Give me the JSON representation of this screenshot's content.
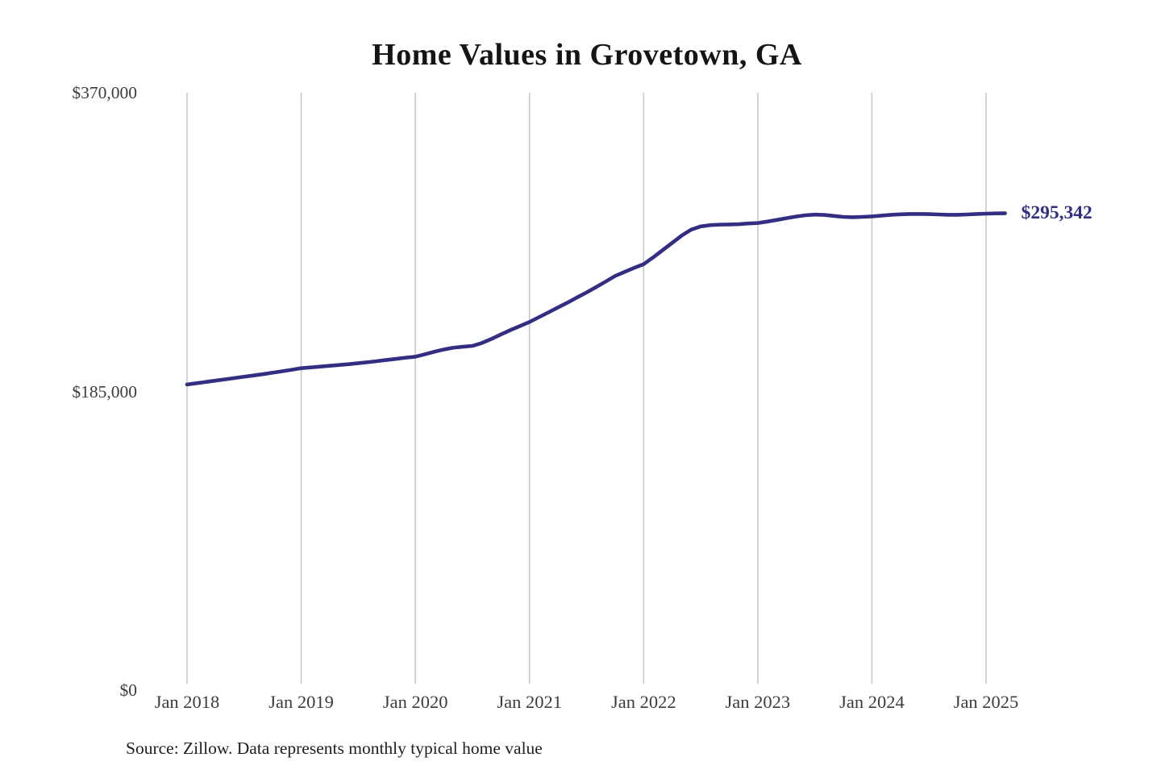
{
  "chart_data": {
    "type": "line",
    "title": "Home Values in Grovetown, GA",
    "source_note": "Source: Zillow. Data represents monthly typical home value",
    "end_label": "$295,342",
    "latest_value": 295342,
    "ylim": [
      0,
      370000
    ],
    "grid": "vertical-only",
    "colors": {
      "line": "#332e82",
      "end_label": "#332e82",
      "gridline": "#c9c9c9",
      "axis_text": "#3c3c3c",
      "title_text": "#151515"
    },
    "y_ticks": [
      {
        "value": 370000,
        "label": "$370,000"
      },
      {
        "value": 185000,
        "label": "$185,000"
      },
      {
        "value": 0,
        "label": "$0"
      }
    ],
    "x_tick_labels": [
      "Jan 2018",
      "Jan 2019",
      "Jan 2020",
      "Jan 2021",
      "Jan 2022",
      "Jan 2023",
      "Jan 2024",
      "Jan 2025"
    ],
    "series": [
      {
        "name": "Typical home value",
        "color": "#332e82",
        "x": [
          "2018-01",
          "2018-02",
          "2018-03",
          "2018-04",
          "2018-05",
          "2018-06",
          "2018-07",
          "2018-08",
          "2018-09",
          "2018-10",
          "2018-11",
          "2018-12",
          "2019-01",
          "2019-02",
          "2019-03",
          "2019-04",
          "2019-05",
          "2019-06",
          "2019-07",
          "2019-08",
          "2019-09",
          "2019-10",
          "2019-11",
          "2019-12",
          "2020-01",
          "2020-02",
          "2020-03",
          "2020-04",
          "2020-05",
          "2020-06",
          "2020-07",
          "2020-08",
          "2020-09",
          "2020-10",
          "2020-11",
          "2020-12",
          "2021-01",
          "2021-02",
          "2021-03",
          "2021-04",
          "2021-05",
          "2021-06",
          "2021-07",
          "2021-08",
          "2021-09",
          "2021-10",
          "2021-11",
          "2021-12",
          "2022-01",
          "2022-02",
          "2022-03",
          "2022-04",
          "2022-05",
          "2022-06",
          "2022-07",
          "2022-08",
          "2022-09",
          "2022-10",
          "2022-11",
          "2022-12",
          "2023-01",
          "2023-02",
          "2023-03",
          "2023-04",
          "2023-05",
          "2023-06",
          "2023-07",
          "2023-08",
          "2023-09",
          "2023-10",
          "2023-11",
          "2023-12",
          "2024-01",
          "2024-02",
          "2024-03",
          "2024-04",
          "2024-05",
          "2024-06",
          "2024-07",
          "2024-08",
          "2024-09",
          "2024-10",
          "2024-11",
          "2024-12",
          "2025-01",
          "2025-02",
          "2025-03"
        ],
        "values": [
          189300,
          190100,
          190900,
          191700,
          192500,
          193300,
          194100,
          194900,
          195700,
          196600,
          197500,
          198400,
          199400,
          199900,
          200400,
          200900,
          201400,
          201900,
          202500,
          203100,
          203800,
          204500,
          205200,
          205900,
          206500,
          208000,
          209600,
          211000,
          212100,
          212700,
          213200,
          215000,
          217500,
          220300,
          223000,
          225500,
          228000,
          231000,
          234000,
          237000,
          240000,
          243200,
          246300,
          249600,
          253000,
          256500,
          259000,
          261500,
          263800,
          268000,
          272500,
          277000,
          281500,
          285200,
          287200,
          288000,
          288300,
          288400,
          288600,
          289000,
          289300,
          290200,
          291200,
          292300,
          293300,
          294100,
          294500,
          294300,
          293700,
          293100,
          292900,
          293100,
          293400,
          293900,
          294400,
          294700,
          294900,
          294900,
          294800,
          294600,
          294400,
          294400,
          294600,
          294900,
          295100,
          295250,
          295342
        ]
      }
    ]
  }
}
